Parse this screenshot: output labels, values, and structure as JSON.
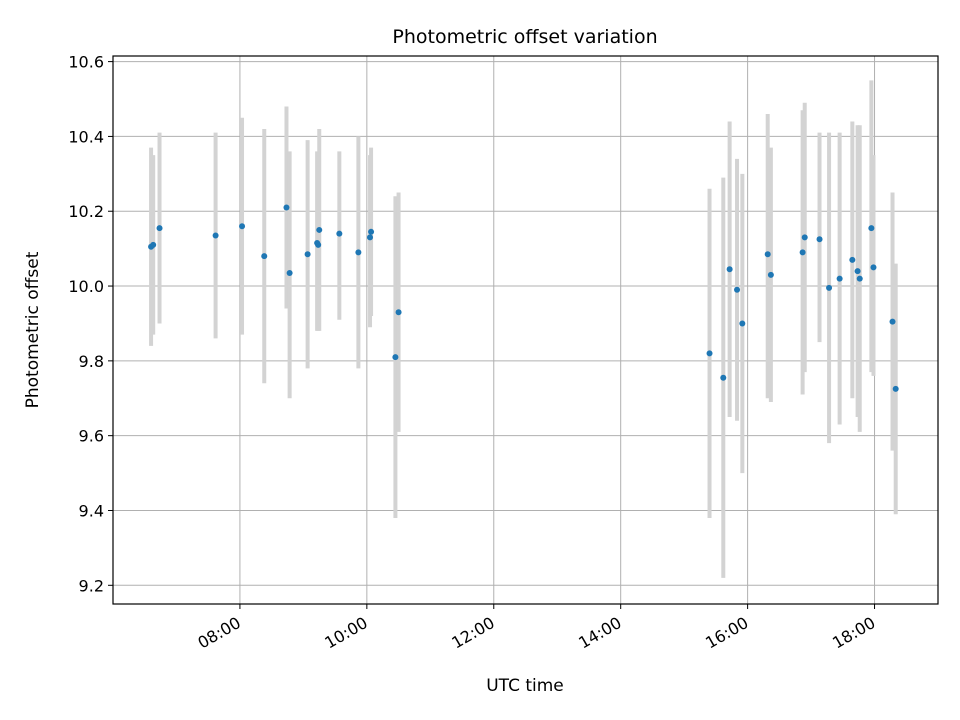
{
  "chart_data": {
    "type": "scatter",
    "title": "Photometric offset variation",
    "xlabel": "UTC time",
    "ylabel": "Photometric offset",
    "x_axis_kind": "time",
    "xlim": [
      "06:00",
      "19:00"
    ],
    "ylim": [
      9.15,
      10.615
    ],
    "grid": true,
    "xticks": [
      "08:00",
      "10:00",
      "12:00",
      "14:00",
      "16:00",
      "18:00"
    ],
    "yticks": [
      "9.2",
      "9.4",
      "9.6",
      "9.8",
      "10.0",
      "10.2",
      "10.4",
      "10.6"
    ],
    "marker_color": "#1f77b4",
    "errorbar_color": "#d3d3d3",
    "points": [
      {
        "x": "06:36",
        "y": 10.105,
        "ylow": 9.84,
        "yhigh": 10.37
      },
      {
        "x": "06:38",
        "y": 10.11,
        "ylow": 9.87,
        "yhigh": 10.35
      },
      {
        "x": "06:44",
        "y": 10.155,
        "ylow": 9.9,
        "yhigh": 10.41
      },
      {
        "x": "07:37",
        "y": 10.135,
        "ylow": 9.86,
        "yhigh": 10.41
      },
      {
        "x": "08:02",
        "y": 10.16,
        "ylow": 9.87,
        "yhigh": 10.45
      },
      {
        "x": "08:23",
        "y": 10.08,
        "ylow": 9.74,
        "yhigh": 10.42
      },
      {
        "x": "08:44",
        "y": 10.21,
        "ylow": 9.94,
        "yhigh": 10.48
      },
      {
        "x": "08:47",
        "y": 10.035,
        "ylow": 9.7,
        "yhigh": 10.36
      },
      {
        "x": "09:04",
        "y": 10.085,
        "ylow": 9.78,
        "yhigh": 10.39
      },
      {
        "x": "09:13",
        "y": 10.115,
        "ylow": 9.88,
        "yhigh": 10.36
      },
      {
        "x": "09:14",
        "y": 10.11,
        "ylow": 9.88,
        "yhigh": 10.34
      },
      {
        "x": "09:15",
        "y": 10.15,
        "ylow": 9.88,
        "yhigh": 10.42
      },
      {
        "x": "09:34",
        "y": 10.14,
        "ylow": 9.91,
        "yhigh": 10.36
      },
      {
        "x": "09:52",
        "y": 10.09,
        "ylow": 9.78,
        "yhigh": 10.4
      },
      {
        "x": "10:03",
        "y": 10.13,
        "ylow": 9.89,
        "yhigh": 10.35
      },
      {
        "x": "10:04",
        "y": 10.145,
        "ylow": 9.92,
        "yhigh": 10.37
      },
      {
        "x": "10:27",
        "y": 9.81,
        "ylow": 9.38,
        "yhigh": 10.24
      },
      {
        "x": "10:30",
        "y": 9.93,
        "ylow": 9.61,
        "yhigh": 10.25
      },
      {
        "x": "15:24",
        "y": 9.82,
        "ylow": 9.38,
        "yhigh": 10.26
      },
      {
        "x": "15:37",
        "y": 9.755,
        "ylow": 9.22,
        "yhigh": 10.29
      },
      {
        "x": "15:43",
        "y": 10.045,
        "ylow": 9.65,
        "yhigh": 10.44
      },
      {
        "x": "15:50",
        "y": 9.99,
        "ylow": 9.64,
        "yhigh": 10.34
      },
      {
        "x": "15:55",
        "y": 9.9,
        "ylow": 9.5,
        "yhigh": 10.3
      },
      {
        "x": "16:19",
        "y": 10.085,
        "ylow": 9.7,
        "yhigh": 10.46
      },
      {
        "x": "16:22",
        "y": 10.03,
        "ylow": 9.69,
        "yhigh": 10.37
      },
      {
        "x": "16:52",
        "y": 10.09,
        "ylow": 9.71,
        "yhigh": 10.47
      },
      {
        "x": "16:54",
        "y": 10.13,
        "ylow": 9.77,
        "yhigh": 10.49
      },
      {
        "x": "17:08",
        "y": 10.125,
        "ylow": 9.85,
        "yhigh": 10.41
      },
      {
        "x": "17:17",
        "y": 9.995,
        "ylow": 9.58,
        "yhigh": 10.41
      },
      {
        "x": "17:27",
        "y": 10.02,
        "ylow": 9.63,
        "yhigh": 10.41
      },
      {
        "x": "17:39",
        "y": 10.07,
        "ylow": 9.7,
        "yhigh": 10.44
      },
      {
        "x": "17:44",
        "y": 10.04,
        "ylow": 9.65,
        "yhigh": 10.43
      },
      {
        "x": "17:46",
        "y": 10.02,
        "ylow": 9.61,
        "yhigh": 10.43
      },
      {
        "x": "17:57",
        "y": 10.155,
        "ylow": 9.77,
        "yhigh": 10.55
      },
      {
        "x": "17:59",
        "y": 10.05,
        "ylow": 9.76,
        "yhigh": 10.35
      },
      {
        "x": "18:17",
        "y": 9.905,
        "ylow": 9.56,
        "yhigh": 10.25
      },
      {
        "x": "18:20",
        "y": 9.725,
        "ylow": 9.39,
        "yhigh": 10.06
      }
    ]
  }
}
